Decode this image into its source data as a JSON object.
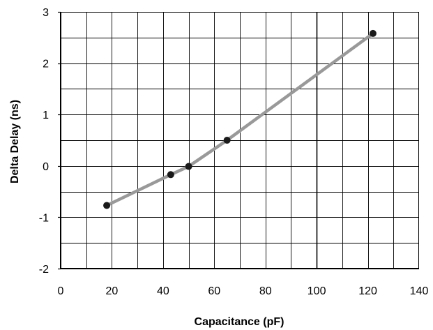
{
  "chart_data": {
    "type": "line",
    "title": "",
    "xlabel": "Capacitance (pF)",
    "ylabel": "Delta Delay  (ns)",
    "xlim": [
      0,
      140
    ],
    "ylim": [
      -2,
      3
    ],
    "x_ticks": [
      0,
      20,
      40,
      60,
      80,
      100,
      120,
      140
    ],
    "y_ticks": [
      -2,
      -1,
      0,
      1,
      2,
      3
    ],
    "x_minor_step": 10,
    "y_minor_step": 0.5,
    "grid": true,
    "legend": "none",
    "series": [
      {
        "color": "#999999",
        "marker_color": "#1a1a1a",
        "x": [
          18,
          43,
          50,
          65,
          122
        ],
        "y": [
          -0.77,
          -0.17,
          -0.01,
          0.5,
          2.58
        ]
      }
    ]
  }
}
